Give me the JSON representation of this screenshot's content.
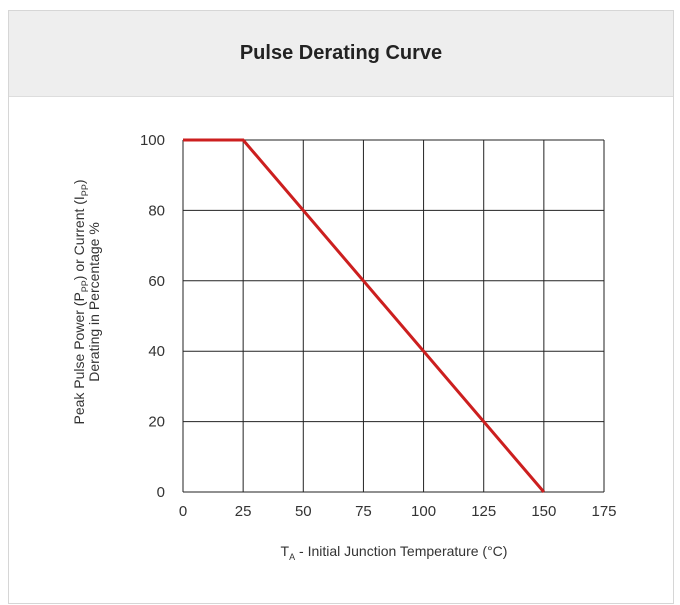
{
  "header": {
    "title": "Pulse Derating Curve"
  },
  "chart_data": {
    "type": "line",
    "ylabel": {
      "line1": {
        "prefix": "Peak Pulse Power (P",
        "sub1": "PP",
        "middle": ") or Current (I",
        "sub2": "PP",
        "suffix": ")"
      },
      "line2": "Derating in Percentage %"
    },
    "xlabel": {
      "prefix": "T",
      "sub": "A",
      "suffix": " - Initial Junction Temperature (°C)"
    },
    "xlim": [
      0,
      175
    ],
    "ylim": [
      0,
      100
    ],
    "xticks": [
      0,
      25,
      50,
      75,
      100,
      125,
      150,
      175
    ],
    "yticks": [
      0,
      20,
      40,
      60,
      80,
      100
    ],
    "grid": true,
    "series": [
      {
        "x": [
          0,
          25,
          150
        ],
        "y": [
          100,
          100,
          0
        ],
        "color": "#cc1f1f"
      }
    ]
  }
}
